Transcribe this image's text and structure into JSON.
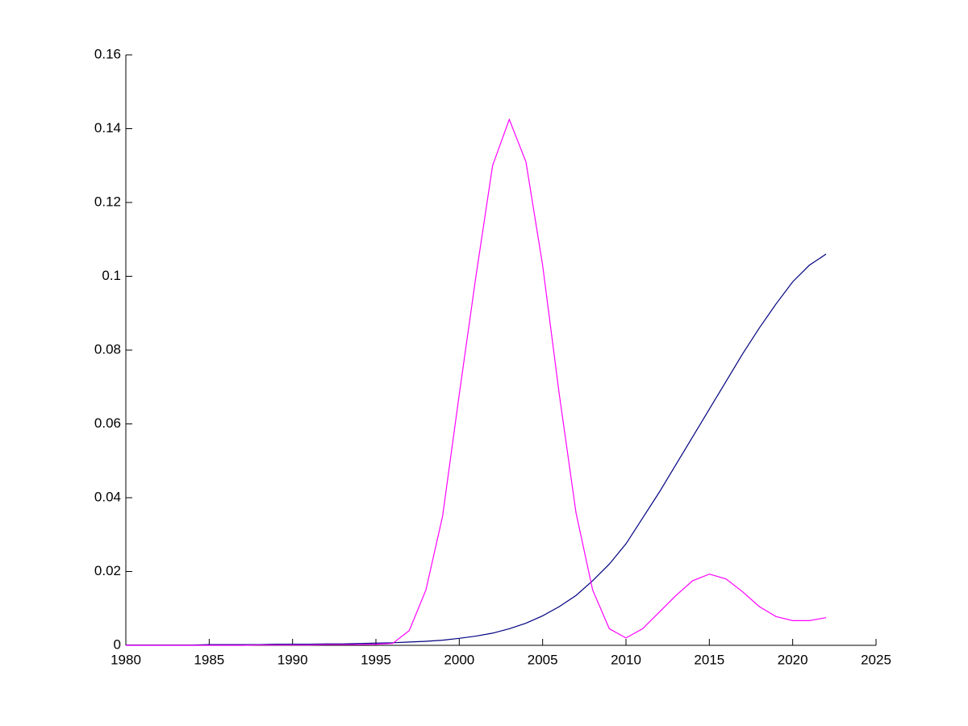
{
  "chart_data": {
    "type": "line",
    "x": [
      1980,
      1981,
      1982,
      1983,
      1984,
      1985,
      1986,
      1987,
      1988,
      1989,
      1990,
      1991,
      1992,
      1993,
      1994,
      1995,
      1996,
      1997,
      1998,
      1999,
      2000,
      2001,
      2002,
      2003,
      2004,
      2005,
      2006,
      2007,
      2008,
      2009,
      2010,
      2011,
      2012,
      2013,
      2014,
      2015,
      2016,
      2017,
      2018,
      2019,
      2020,
      2021,
      2022
    ],
    "series": [
      {
        "color": "#000080",
        "values": [
          0.0001,
          0.0001,
          0.0001,
          0.0001,
          0.0001,
          0.0002,
          0.0002,
          0.0002,
          0.0002,
          0.0003,
          0.0003,
          0.0003,
          0.0004,
          0.0004,
          0.0005,
          0.0006,
          0.0007,
          0.0009,
          0.0011,
          0.0014,
          0.0019,
          0.0025,
          0.0033,
          0.0045,
          0.006,
          0.008,
          0.0105,
          0.0135,
          0.0175,
          0.022,
          0.0275,
          0.0345,
          0.0415,
          0.049,
          0.0565,
          0.064,
          0.0715,
          0.079,
          0.086,
          0.0925,
          0.0985,
          0.103,
          0.106
        ]
      },
      {
        "color": "#ff00ff",
        "values": [
          0,
          0,
          0,
          0,
          0,
          0,
          0,
          0,
          0.0001,
          0.0001,
          0.0001,
          0.0001,
          0.0002,
          0.0002,
          0.0002,
          0.0003,
          0.0005,
          0.004,
          0.015,
          0.035,
          0.068,
          0.1,
          0.13,
          0.1425,
          0.131,
          0.103,
          0.068,
          0.036,
          0.015,
          0.0045,
          0.002,
          0.0045,
          0.009,
          0.0135,
          0.0175,
          0.0193,
          0.018,
          0.0145,
          0.0105,
          0.0078,
          0.0067,
          0.0067,
          0.0075
        ]
      }
    ],
    "xlim": [
      1980,
      2025
    ],
    "xticks": [
      1980,
      1985,
      1990,
      1995,
      2000,
      2005,
      2010,
      2015,
      2020,
      2025
    ],
    "ylim": [
      0,
      0.16
    ],
    "yticks": [
      0,
      0.02,
      0.04,
      0.06,
      0.08,
      0.1,
      0.12,
      0.14,
      0.16
    ]
  }
}
